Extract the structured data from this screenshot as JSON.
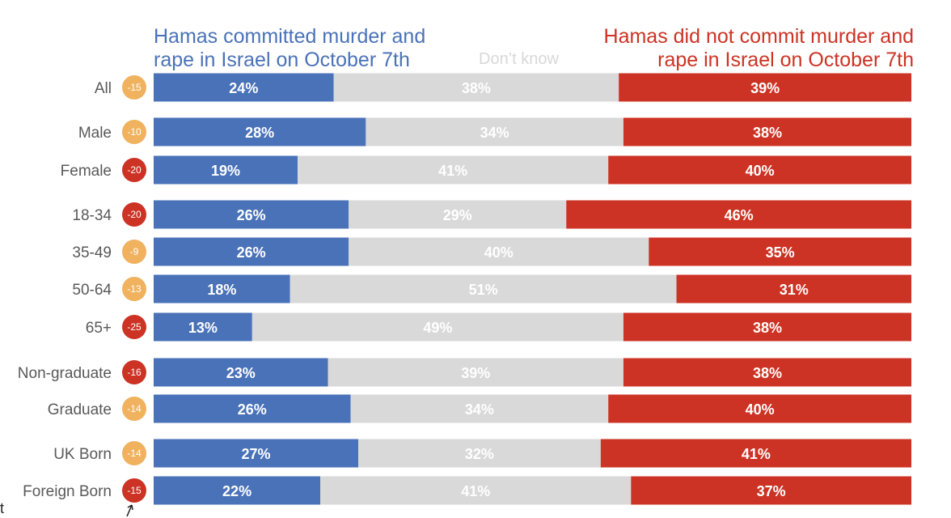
{
  "legend": {
    "blue_line1": "Hamas committed murder and",
    "blue_line2": "rape in Israel on October 7th",
    "grey": "Don’t know",
    "red_line1": "Hamas did not commit murder and",
    "red_line2": "rape in Israel on October 7th"
  },
  "colors": {
    "blue": "#4a72b8",
    "grey": "#d9d9d9",
    "red": "#cc3324",
    "badge_orange": "#f0b25e",
    "badge_red": "#cc3324"
  },
  "stray_text": "t",
  "chart_data": {
    "type": "bar",
    "orientation": "horizontal-stacked-100",
    "series": [
      {
        "name": "Hamas committed murder and rape in Israel on October 7th",
        "color": "#4a72b8"
      },
      {
        "name": "Don’t know",
        "color": "#d9d9d9"
      },
      {
        "name": "Hamas did not commit murder and rape in Israel on October 7th",
        "color": "#cc3324"
      }
    ],
    "rows": [
      {
        "label": "All",
        "net": "-15",
        "badge": "orange",
        "values": [
          24,
          38,
          39
        ],
        "labels": [
          "24%",
          "38%",
          "39%"
        ]
      },
      {
        "label": "Male",
        "net": "-10",
        "badge": "orange",
        "values": [
          28,
          34,
          38
        ],
        "labels": [
          "28%",
          "34%",
          "38%"
        ]
      },
      {
        "label": "Female",
        "net": "-20",
        "badge": "red",
        "values": [
          19,
          41,
          40
        ],
        "labels": [
          "19%",
          "41%",
          "40%"
        ]
      },
      {
        "label": "18-34",
        "net": "-20",
        "badge": "red",
        "values": [
          26,
          29,
          46
        ],
        "labels": [
          "26%",
          "29%",
          "46%"
        ]
      },
      {
        "label": "35-49",
        "net": "-9",
        "badge": "orange",
        "values": [
          26,
          40,
          35
        ],
        "labels": [
          "26%",
          "40%",
          "35%"
        ]
      },
      {
        "label": "50-64",
        "net": "-13",
        "badge": "orange",
        "values": [
          18,
          51,
          31
        ],
        "labels": [
          "18%",
          "51%",
          "31%"
        ]
      },
      {
        "label": "65+",
        "net": "-25",
        "badge": "red",
        "values": [
          13,
          49,
          38
        ],
        "labels": [
          "13%",
          "49%",
          "38%"
        ]
      },
      {
        "label": "Non-graduate",
        "net": "-16",
        "badge": "red",
        "values": [
          23,
          39,
          38
        ],
        "labels": [
          "23%",
          "39%",
          "38%"
        ]
      },
      {
        "label": "Graduate",
        "net": "-14",
        "badge": "orange",
        "values": [
          26,
          34,
          40
        ],
        "labels": [
          "26%",
          "34%",
          "40%"
        ]
      },
      {
        "label": "UK Born",
        "net": "-14",
        "badge": "orange",
        "values": [
          27,
          32,
          41
        ],
        "labels": [
          "27%",
          "32%",
          "41%"
        ]
      },
      {
        "label": "Foreign Born",
        "net": "-15",
        "badge": "red",
        "values": [
          22,
          41,
          37
        ],
        "labels": [
          "22%",
          "41%",
          "37%"
        ]
      }
    ]
  }
}
